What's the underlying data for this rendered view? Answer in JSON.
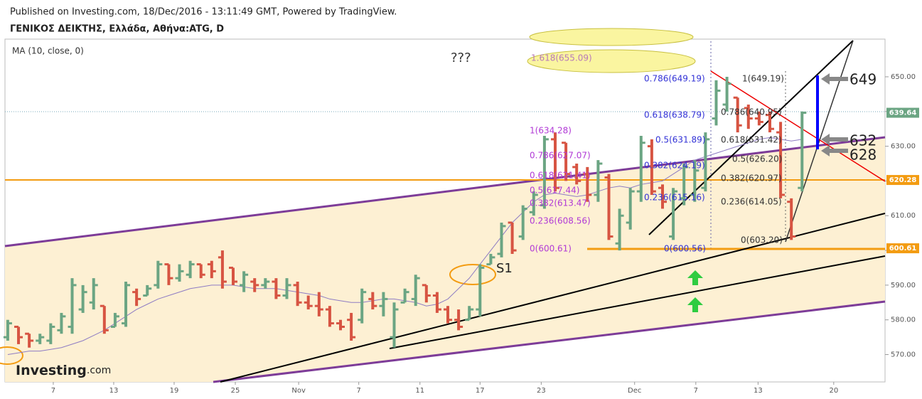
{
  "header": {
    "published": "Published on Investing.com, 18/Dec/2016 - 13:11:49 GMT, Powered by TradingView.",
    "symbol": "ΓΕΝΙΚΟΣ ΔΕΙΚΤΗΣ, Ελλάδα, Αθήνα:ATG, D"
  },
  "logo": {
    "main": "Investing",
    "suffix": ".com"
  },
  "chart_data": {
    "type": "ohlc",
    "indicator": "MA (10, close, 0)",
    "up_color": "#6ba583",
    "down_color": "#d75442",
    "ma_color": "#8e7cc3",
    "open": [
      575,
      578,
      576,
      574,
      574,
      577,
      578,
      583,
      585,
      584,
      578,
      579,
      588,
      587,
      590,
      596,
      592,
      593,
      596,
      596,
      598,
      595,
      590,
      591,
      590,
      591,
      587,
      590,
      585,
      584,
      583,
      579,
      580,
      580,
      586,
      584,
      575,
      585,
      586,
      590,
      587,
      583,
      580,
      580,
      583,
      596,
      599,
      608,
      604,
      611,
      613,
      632,
      631,
      624,
      622,
      616,
      621,
      602,
      608,
      617,
      630,
      618,
      604,
      615,
      616,
      618,
      638,
      642,
      644,
      641,
      638,
      639,
      634,
      614,
      618
    ],
    "high": [
      580,
      578,
      576,
      576,
      579,
      582,
      592,
      590,
      592,
      584,
      582,
      591,
      589,
      590,
      597,
      596,
      596,
      597,
      596,
      597,
      600,
      595,
      594,
      592,
      592,
      592,
      592,
      591,
      587,
      588,
      584,
      580,
      582,
      589,
      588,
      588,
      585,
      589,
      593,
      590,
      588,
      584,
      583,
      584,
      596,
      599,
      608,
      608,
      613,
      617,
      633,
      634,
      631,
      625,
      624,
      626,
      622,
      612,
      618,
      633,
      632,
      619,
      618,
      625,
      626,
      634,
      649,
      650,
      644,
      642,
      640,
      640,
      637,
      615,
      640
    ],
    "low": [
      574,
      573,
      572,
      573,
      573,
      576,
      576,
      582,
      583,
      576,
      578,
      578,
      584,
      587,
      589,
      590,
      591,
      592,
      592,
      592,
      589,
      590,
      588,
      588,
      589,
      586,
      586,
      584,
      583,
      581,
      578,
      577,
      574,
      579,
      583,
      581,
      572,
      585,
      584,
      585,
      582,
      579,
      577,
      580,
      581,
      596,
      598,
      599,
      603,
      610,
      612,
      617,
      620,
      619,
      614,
      614,
      603,
      600,
      606,
      614,
      616,
      612,
      603,
      613,
      614,
      617,
      636,
      640,
      634,
      635,
      636,
      634,
      615,
      603,
      617
    ],
    "close": [
      579,
      575,
      574,
      575,
      578,
      581,
      590,
      588,
      590,
      577,
      581,
      590,
      586,
      589,
      596,
      592,
      594,
      596,
      593,
      594,
      591,
      591,
      593,
      590,
      591,
      587,
      590,
      585,
      584,
      583,
      579,
      578,
      575,
      588,
      584,
      586,
      583,
      588,
      592,
      587,
      583,
      580,
      578,
      583,
      595,
      598,
      607,
      600,
      612,
      616,
      632,
      618,
      622,
      620,
      616,
      625,
      604,
      610,
      617,
      631,
      617,
      614,
      617,
      624,
      623,
      632,
      646,
      648,
      636,
      638,
      637,
      635,
      616,
      604,
      639.64
    ],
    "ma": [
      570,
      570.5,
      571,
      571,
      571.5,
      572,
      573,
      574,
      575.5,
      577,
      579,
      581,
      583,
      584.5,
      586,
      587,
      588,
      589,
      589.5,
      590,
      590,
      590,
      589.5,
      589,
      589,
      589,
      588.5,
      588,
      587.5,
      587,
      586,
      585.5,
      585,
      585,
      585.5,
      586,
      586,
      585.5,
      585,
      584,
      584.5,
      586,
      589,
      592,
      596,
      600,
      604,
      608,
      611,
      614,
      616,
      616.5,
      616,
      615.5,
      616,
      617,
      618,
      618.5,
      618,
      619,
      619.5,
      620,
      622,
      624,
      626,
      627,
      628,
      629,
      630,
      631,
      632,
      632.5,
      632,
      631.5,
      632
    ],
    "xlim": [
      -0.26,
      81.73
    ],
    "ylim": [
      562.12,
      660.85
    ],
    "xticks": [
      {
        "value": 4.24,
        "label": "7"
      },
      {
        "value": 9.87,
        "label": "13"
      },
      {
        "value": 15.5,
        "label": "19"
      },
      {
        "value": 21.2,
        "label": "25"
      },
      {
        "value": 27.1,
        "label": "Nov"
      },
      {
        "value": 32.7,
        "label": "7"
      },
      {
        "value": 38.4,
        "label": "11"
      },
      {
        "value": 44.0,
        "label": "17"
      },
      {
        "value": 49.7,
        "label": "23"
      },
      {
        "value": 58.4,
        "label": "Dec"
      },
      {
        "value": 64.1,
        "label": "7"
      },
      {
        "value": 69.9,
        "label": "13"
      },
      {
        "value": 76.95,
        "label": "20"
      }
    ],
    "yticks": [
      {
        "value": 570,
        "label": "570.00"
      },
      {
        "value": 580,
        "label": "580.00"
      },
      {
        "value": 590,
        "label": "590.00"
      },
      {
        "value": 600,
        "label": "600.00"
      },
      {
        "value": 610,
        "label": "610.00"
      },
      {
        "value": 620,
        "label": "620.00"
      },
      {
        "value": 630,
        "label": "630.00"
      },
      {
        "value": 640,
        "label": "640.00"
      },
      {
        "value": 650,
        "label": "650.00"
      }
    ],
    "price_labels": [
      {
        "value": 639.64,
        "color": "#6ba583"
      },
      {
        "value": 620.28,
        "color": "#f39c12"
      },
      {
        "value": 600.61,
        "color": "#f39c12"
      }
    ]
  },
  "annotations": [
    "???",
    "1.618(655.09)",
    "1(634.28)",
    "0.786(627.07)",
    "0.618(621.41)",
    "0.5(617.44)",
    "0.382(613.47)",
    "0.236(608.56)",
    "0(600.61)",
    "0.786(649.19)",
    "0.618(638.79)",
    "0.5(631.89)",
    "0.382(624.19)",
    "0.236(615.16)",
    "0(600.56)",
    "1(649.19)",
    "0.786(640.95)",
    "0.618(631.42)",
    "0.5(626.20)",
    "0.382(620.97)",
    "0.236(614.05)",
    "0(603.20)",
    "649",
    "632",
    "628",
    "S1"
  ]
}
